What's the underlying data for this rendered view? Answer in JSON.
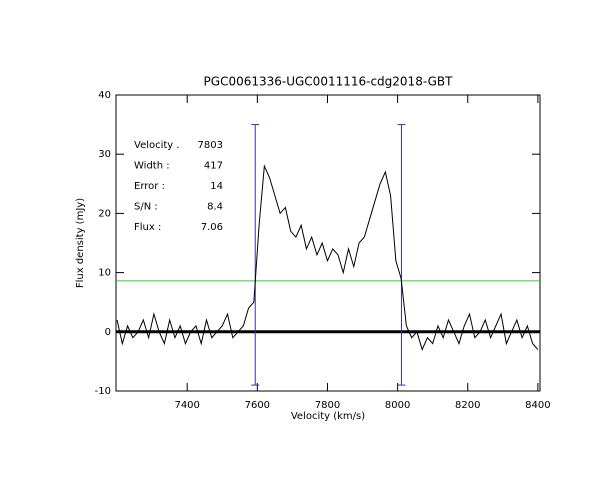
{
  "chart_data": {
    "type": "line",
    "title": "PGC0061336-UGC0011116-cdg2018-GBT",
    "x_label": "Velocity (km/s)",
    "y_label": "Flux density (mJy)",
    "x": [
      7200,
      7215,
      7230,
      7245,
      7260,
      7275,
      7290,
      7305,
      7320,
      7335,
      7350,
      7365,
      7380,
      7395,
      7410,
      7425,
      7440,
      7455,
      7470,
      7485,
      7500,
      7515,
      7530,
      7545,
      7560,
      7575,
      7590,
      7605,
      7620,
      7635,
      7650,
      7665,
      7680,
      7695,
      7710,
      7725,
      7740,
      7755,
      7770,
      7785,
      7800,
      7815,
      7830,
      7845,
      7860,
      7875,
      7890,
      7905,
      7920,
      7935,
      7950,
      7965,
      7980,
      7995,
      8010,
      8025,
      8040,
      8055,
      8070,
      8085,
      8100,
      8115,
      8130,
      8145,
      8160,
      8175,
      8190,
      8205,
      8220,
      8235,
      8250,
      8265,
      8280,
      8295,
      8310,
      8325,
      8340,
      8355,
      8370,
      8385,
      8400
    ],
    "values": [
      2,
      -2,
      1,
      -1,
      0,
      2,
      -1,
      3,
      0,
      -2,
      2,
      -1,
      1,
      -2,
      0,
      1,
      -2,
      2,
      -1,
      0,
      1,
      3,
      -1,
      0,
      1,
      4,
      5,
      18,
      28,
      26,
      23,
      20,
      21,
      17,
      16,
      18,
      14,
      16,
      13,
      15,
      12,
      14,
      13,
      10,
      14,
      11,
      15,
      16,
      19,
      22,
      25,
      27,
      23,
      12,
      9,
      1,
      -1,
      0,
      -3,
      -1,
      -2,
      1,
      -1,
      2,
      0,
      -2,
      1,
      3,
      -1,
      0,
      2,
      -1,
      1,
      3,
      -2,
      0,
      2,
      -1,
      1,
      -2,
      -3
    ],
    "color": "#000000",
    "xlim": [
      7197,
      8406
    ],
    "ylim": [
      -10,
      40
    ],
    "xticks": [
      7400,
      7600,
      7800,
      8000,
      8200,
      8400
    ],
    "yticks": [
      -10,
      0,
      10,
      20,
      30,
      40
    ],
    "threshold": {
      "value": 8.6,
      "color": "#33cc33"
    },
    "markers": [
      {
        "x": 7594,
        "ymin": -9,
        "ymax": 35
      },
      {
        "x": 8011,
        "ymin": -9,
        "ymax": 35
      }
    ],
    "marker_color": "#3333aa",
    "annotations": [
      {
        "label": "Velocity .",
        "value": 7803
      },
      {
        "label": "Width :",
        "value": 417
      },
      {
        "label": "Error :",
        "value": 14
      },
      {
        "label": "S/N :",
        "value": 8.4
      },
      {
        "label": "Flux :",
        "value": 7.06
      }
    ],
    "annotation_color": "#3333aa"
  }
}
